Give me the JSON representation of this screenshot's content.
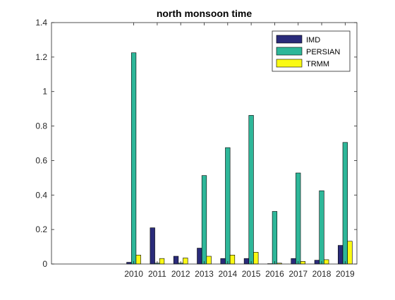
{
  "chart_data": {
    "type": "bar",
    "title": "north monsoon time",
    "xlabel": "",
    "ylabel": "",
    "categories": [
      "2010",
      "2011",
      "2012",
      "2013",
      "2014",
      "2015",
      "2016",
      "2017",
      "2018",
      "2019"
    ],
    "series": [
      {
        "name": "IMD",
        "color": "#2a2b7a",
        "values": [
          0.01,
          0.21,
          0.045,
          0.092,
          0.032,
          0.032,
          0.0,
          0.032,
          0.022,
          0.108
        ]
      },
      {
        "name": "PERSIAN",
        "color": "#2eb799",
        "values": [
          1.225,
          0.005,
          0.005,
          0.513,
          0.675,
          0.862,
          0.305,
          0.528,
          0.425,
          0.705
        ]
      },
      {
        "name": "TRMM",
        "color": "#fafa14",
        "values": [
          0.052,
          0.032,
          0.035,
          0.045,
          0.052,
          0.068,
          0.005,
          0.015,
          0.025,
          0.132
        ]
      }
    ],
    "ylim": [
      0,
      1.4
    ],
    "yticks": [
      "0",
      "0.2",
      "0.4",
      "0.6",
      "0.8",
      "1",
      "1.2",
      "1.4"
    ],
    "legend_position": "top-right",
    "grid": false
  }
}
